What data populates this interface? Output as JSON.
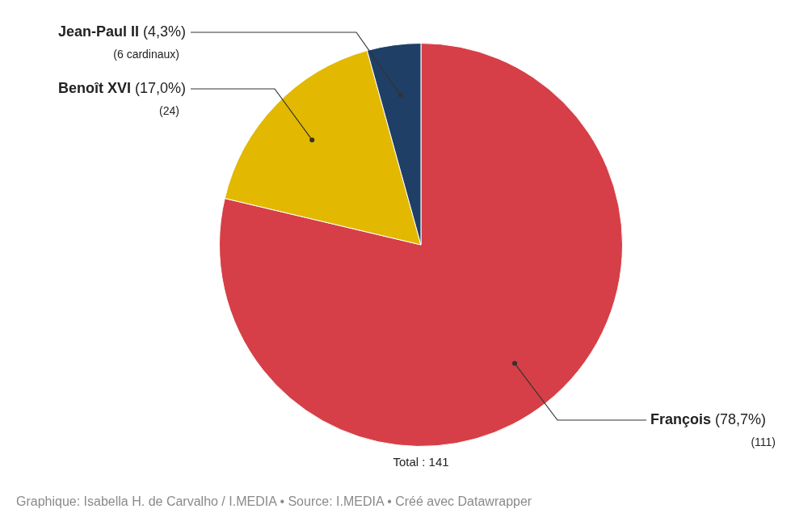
{
  "chart_data": {
    "type": "pie",
    "categories": [
      "François",
      "Benoît XVI",
      "Jean-Paul II"
    ],
    "values": [
      78.7,
      17.0,
      4.3
    ],
    "value_labels": [
      "(78,7%)",
      "(17,0%)",
      "(4,3%)"
    ],
    "count_labels": [
      "(111)",
      "(24)",
      "(6 cardinaux)"
    ],
    "colors": [
      "#d63f47",
      "#e2b800",
      "#1f3f66"
    ],
    "data_labels": true,
    "annotations": [
      "Total : 141"
    ],
    "caption": "Graphique: Isabella H. de Carvalho / I.MEDIA • Source: I.MEDIA • Créé avec Datawrapper"
  }
}
